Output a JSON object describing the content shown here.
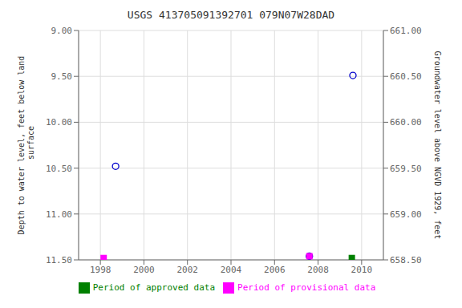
{
  "chart_data": {
    "type": "scatter",
    "title": "USGS 413705091392701 079N07W28DAD",
    "y_label": "Depth to water level, feet below land\n surface",
    "y2_label": "Groundwater level above NGVD 1929, feet",
    "xlim": [
      1997.0,
      2011.0
    ],
    "xticks": [
      1998,
      2000,
      2002,
      2004,
      2006,
      2008,
      2010
    ],
    "ylim": [
      11.5,
      9.0
    ],
    "yticks": [
      {
        "value": 9.0,
        "label": "9.00"
      },
      {
        "value": 9.5,
        "label": "9.50"
      },
      {
        "value": 10.0,
        "label": "10.00"
      },
      {
        "value": 10.5,
        "label": "10.50"
      },
      {
        "value": 11.0,
        "label": "11.00"
      },
      {
        "value": 11.5,
        "label": "11.50"
      }
    ],
    "y2lim": [
      658.5,
      661.0
    ],
    "y2ticks": [
      {
        "value": 661.0,
        "label": "661.00"
      },
      {
        "value": 660.5,
        "label": "660.50"
      },
      {
        "value": 660.0,
        "label": "660.00"
      },
      {
        "value": 659.5,
        "label": "659.50"
      },
      {
        "value": 659.0,
        "label": "659.00"
      },
      {
        "value": 658.5,
        "label": "658.50"
      }
    ],
    "grid": true,
    "legend": "bottom",
    "series": [
      {
        "color": "#0000cc",
        "marker": "circle",
        "x": [
          1998.7,
          2007.6,
          2009.6
        ],
        "values": [
          10.48,
          11.46,
          9.49
        ]
      },
      {
        "name": "Period of approved data",
        "color": "#008000",
        "marker": "square",
        "x": [
          2009.55
        ],
        "values": [
          11.48
        ]
      },
      {
        "name": "Period of provisional data",
        "color": "#ff00ff",
        "marker": "square",
        "x": [
          1998.15,
          2007.6
        ],
        "values": [
          11.48,
          11.46
        ]
      }
    ]
  }
}
